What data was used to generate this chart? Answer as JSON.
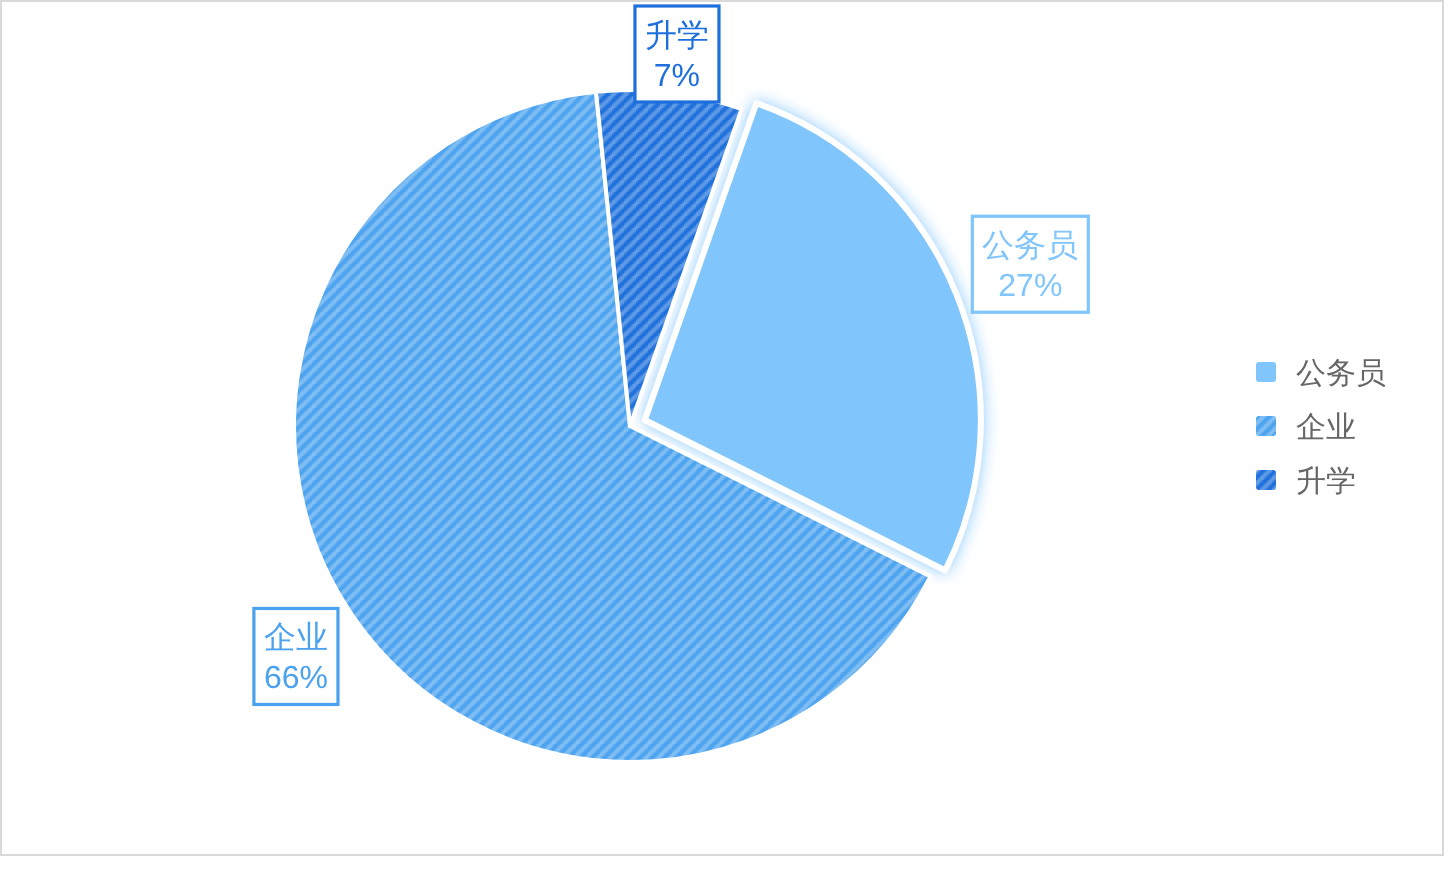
{
  "chart_data": {
    "type": "pie",
    "categories": [
      "公务员",
      "企业",
      "升学"
    ],
    "values": [
      27,
      66,
      7
    ],
    "colors": [
      "#80c5fc",
      "#4aa2ef",
      "#1c6fdc"
    ],
    "value_labels": [
      "27%",
      "66%",
      "7%"
    ],
    "legend": "right"
  }
}
